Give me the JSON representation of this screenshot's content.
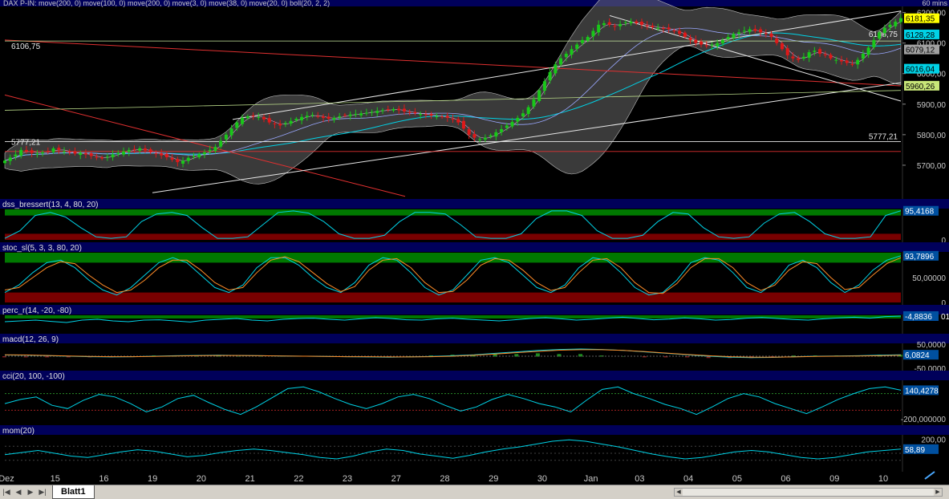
{
  "window": {
    "sheet_tab": "Blatt1"
  },
  "colors": {
    "background": "#000000",
    "panel_header": "#00005a",
    "up_candle": "#19c819",
    "down_candle": "#e01818",
    "green_zone": "#007800",
    "red_zone": "#780000",
    "band_fill": "#808080",
    "cyan_line": "#00d2e6",
    "orange_line": "#ff8c28",
    "price_axis_yellow": "#ffff00"
  },
  "x_axis": {
    "labels": [
      "Dez",
      "15",
      "16",
      "19",
      "20",
      "21",
      "22",
      "23",
      "27",
      "28",
      "29",
      "30",
      "Jan",
      "03",
      "04",
      "05",
      "06",
      "09",
      "10"
    ]
  },
  "chart_data": [
    {
      "type": "candlestick",
      "title": "DAX P-IN: move(200, 0) move(100, 0) move(200, 0) move(3, 0) move(38, 0) move(20, 0) boll(20, 2, 2)",
      "interval": "60 mins",
      "ylim": [
        5600,
        6220
      ],
      "y_ticks": [
        "5700,00",
        "5800,00",
        "5900,00",
        "6000,00",
        "6100,00",
        "6200,00"
      ],
      "horizontal_lines": [
        6106.75,
        5777.21,
        5745
      ],
      "line_labels_left": [
        "6106,75",
        "5777,21"
      ],
      "line_labels_right": [
        "6106,75",
        "5777,21"
      ],
      "last_value_badges": [
        {
          "label": "6181,35",
          "value": 6181.35,
          "color": "#ffff00"
        },
        {
          "label": "6128,28",
          "value": 6128.28,
          "color": "#00d2e6"
        },
        {
          "label": "6079,12",
          "value": 6079.12,
          "color": "#a0a0a0"
        },
        {
          "label": "6016,04",
          "value": 6016.04,
          "color": "#00d2e6"
        },
        {
          "label": "5960,26",
          "value": 5960.26,
          "color": "#c8e678"
        }
      ],
      "closes": [
        5715,
        5725,
        5735,
        5750,
        5745,
        5740,
        5738,
        5742,
        5745,
        5755,
        5750,
        5745,
        5742,
        5738,
        5740,
        5735,
        5730,
        5725,
        5722,
        5728,
        5735,
        5740,
        5745,
        5750,
        5752,
        5755,
        5748,
        5742,
        5738,
        5732,
        5726,
        5718,
        5710,
        5715,
        5724,
        5730,
        5736,
        5742,
        5750,
        5760,
        5780,
        5800,
        5820,
        5840,
        5855,
        5860,
        5862,
        5858,
        5850,
        5840,
        5835,
        5830,
        5838,
        5845,
        5852,
        5858,
        5862,
        5865,
        5860,
        5855,
        5852,
        5855,
        5860,
        5863,
        5866,
        5868,
        5870,
        5872,
        5875,
        5878,
        5880,
        5882,
        5884,
        5880,
        5876,
        5872,
        5870,
        5868,
        5865,
        5862,
        5860,
        5858,
        5855,
        5850,
        5840,
        5820,
        5800,
        5790,
        5785,
        5790,
        5798,
        5808,
        5818,
        5830,
        5842,
        5855,
        5870,
        5890,
        5915,
        5945,
        5975,
        6005,
        6030,
        6050,
        6065,
        6080,
        6095,
        6110,
        6120,
        6140,
        6160,
        6165,
        6160,
        6155,
        6162,
        6168,
        6170,
        6165,
        6160,
        6155,
        6152,
        6150,
        6148,
        6145,
        6140,
        6130,
        6120,
        6110,
        6100,
        6095,
        6090,
        6095,
        6100,
        6110,
        6120,
        6130,
        6135,
        6140,
        6145,
        6140,
        6135,
        6130,
        6120,
        6100,
        6080,
        6060,
        6050,
        6045,
        6055,
        6070,
        6075,
        6065,
        6060,
        6050,
        6045,
        6040,
        6035,
        6030,
        6045,
        6065,
        6085,
        6110,
        6135,
        6150,
        6160,
        6170,
        6181.35
      ]
    },
    {
      "type": "line",
      "title": "dss_bressert(13, 4, 80, 20)",
      "ylim": [
        0,
        100
      ],
      "zones": {
        "upper": 80,
        "lower": 20
      },
      "y_ticks": [
        "0"
      ],
      "last_value": "95,4168",
      "series": [
        {
          "values": [
            5,
            30,
            80,
            90,
            75,
            40,
            10,
            5,
            10,
            60,
            85,
            90,
            80,
            40,
            5,
            5,
            10,
            50,
            90,
            95,
            88,
            60,
            20,
            5,
            5,
            15,
            60,
            90,
            90,
            85,
            50,
            10,
            5,
            5,
            20,
            70,
            95,
            95,
            80,
            30,
            5,
            5,
            15,
            60,
            90,
            85,
            40,
            10,
            5,
            10,
            55,
            85,
            90,
            60,
            20,
            5,
            5,
            10,
            80,
            95.4
          ]
        }
      ]
    },
    {
      "type": "line",
      "title": "stoc_sl(5, 3, 3, 80, 20)",
      "ylim": [
        0,
        100
      ],
      "zones": {
        "upper": 80,
        "lower": 20
      },
      "y_ticks": [
        "50,00000",
        "0"
      ],
      "last_value": "93,7896",
      "series": [
        {
          "name": "",
          "values": [
            20,
            35,
            60,
            80,
            85,
            70,
            45,
            25,
            15,
            30,
            55,
            80,
            90,
            80,
            55,
            30,
            20,
            35,
            70,
            90,
            90,
            75,
            50,
            30,
            20,
            40,
            75,
            90,
            85,
            60,
            30,
            15,
            25,
            55,
            85,
            90,
            80,
            55,
            30,
            20,
            35,
            70,
            90,
            85,
            60,
            30,
            15,
            20,
            45,
            80,
            90,
            85,
            60,
            30,
            20,
            40,
            75,
            85,
            70,
            40,
            20,
            35,
            65,
            85,
            93.8
          ]
        },
        {
          "name": "",
          "values": [
            25,
            30,
            50,
            70,
            82,
            78,
            55,
            35,
            20,
            25,
            45,
            70,
            85,
            85,
            65,
            40,
            25,
            30,
            60,
            85,
            92,
            82,
            60,
            38,
            22,
            32,
            65,
            85,
            88,
            70,
            40,
            20,
            22,
            45,
            75,
            88,
            85,
            65,
            40,
            24,
            30,
            60,
            85,
            88,
            70,
            40,
            20,
            18,
            38,
            70,
            88,
            88,
            70,
            40,
            24,
            35,
            65,
            82,
            78,
            50,
            26,
            30,
            55,
            78,
            90
          ]
        }
      ]
    },
    {
      "type": "line",
      "title": "perc_r(14, -20, -80)",
      "ylim": [
        -100,
        0
      ],
      "last_value": "-4,8836",
      "last_value_suffix": "01",
      "series": [
        {
          "values": [
            -40,
            -35,
            -30,
            -38,
            -45,
            -30,
            -25,
            -35,
            -40,
            -30,
            -28,
            -35,
            -42,
            -30,
            -25,
            -20,
            -30,
            -35,
            -25,
            -20,
            -18,
            -25,
            -30,
            -22,
            -15,
            -20,
            -28,
            -30,
            -22,
            -18,
            -25,
            -30,
            -35,
            -28,
            -20,
            -15,
            -22,
            -30,
            -25,
            -18,
            -12,
            -20,
            -28,
            -24,
            -16,
            -22,
            -30,
            -26,
            -18,
            -14,
            -20,
            -26,
            -30,
            -22,
            -16,
            -12,
            -18,
            -8,
            -4.9
          ]
        }
      ]
    },
    {
      "type": "line",
      "title": "macd(12, 26, 9)",
      "ylim": [
        -50,
        50
      ],
      "y_ticks": [
        "50,0000",
        "-50,0000"
      ],
      "last_value": "6,0824",
      "series": [
        {
          "name": "",
          "values": [
            5,
            4,
            2,
            0,
            -2,
            -3,
            -2,
            0,
            2,
            3,
            4,
            3,
            2,
            1,
            0,
            -1,
            -2,
            -3,
            -4,
            -3,
            -1,
            2,
            6,
            12,
            18,
            24,
            28,
            30,
            28,
            24,
            18,
            12,
            6,
            0,
            -4,
            -6,
            -5,
            -2,
            0,
            1,
            2,
            4,
            6
          ]
        },
        {
          "name": "",
          "values": [
            6,
            5,
            3,
            1,
            -1,
            -2,
            -2,
            -1,
            1,
            2,
            3,
            3,
            2,
            1,
            0,
            -1,
            -2,
            -2,
            -3,
            -3,
            -2,
            0,
            4,
            9,
            15,
            20,
            25,
            27,
            27,
            24,
            19,
            13,
            7,
            2,
            -2,
            -4,
            -4,
            -3,
            -1,
            0,
            1,
            2,
            4
          ]
        }
      ]
    },
    {
      "type": "line",
      "title": "cci(20, 100, -100)",
      "ylim": [
        -250,
        250
      ],
      "y_ticks": [
        "-200,000000"
      ],
      "last_value": "140,4278",
      "series": [
        {
          "values": [
            -20,
            30,
            60,
            -40,
            -80,
            20,
            90,
            60,
            -20,
            -120,
            -60,
            40,
            80,
            -10,
            -90,
            -150,
            -60,
            50,
            160,
            180,
            120,
            40,
            -30,
            -80,
            -20,
            60,
            90,
            40,
            -40,
            -110,
            -60,
            30,
            90,
            40,
            -20,
            -60,
            -120,
            20,
            150,
            180,
            100,
            40,
            -30,
            -80,
            -150,
            -60,
            40,
            100,
            60,
            -20,
            -80,
            -140,
            -60,
            30,
            100,
            160,
            180,
            140
          ]
        }
      ]
    },
    {
      "type": "line",
      "title": "mom(20)",
      "ylim": [
        -250,
        250
      ],
      "y_ticks": [
        "200,00"
      ],
      "last_value": "58,89",
      "series": [
        {
          "values": [
            -20,
            10,
            40,
            0,
            -40,
            -60,
            -20,
            20,
            50,
            30,
            -10,
            -50,
            -30,
            10,
            40,
            60,
            40,
            10,
            -20,
            -60,
            -80,
            -40,
            20,
            60,
            40,
            -10,
            -40,
            -70,
            -30,
            20,
            60,
            90,
            130,
            170,
            190,
            170,
            130,
            90,
            40,
            -10,
            -50,
            -80,
            -60,
            -20,
            20,
            40,
            20,
            -20,
            -60,
            -80,
            -60,
            -20,
            20,
            40,
            58.89
          ]
        }
      ]
    }
  ]
}
